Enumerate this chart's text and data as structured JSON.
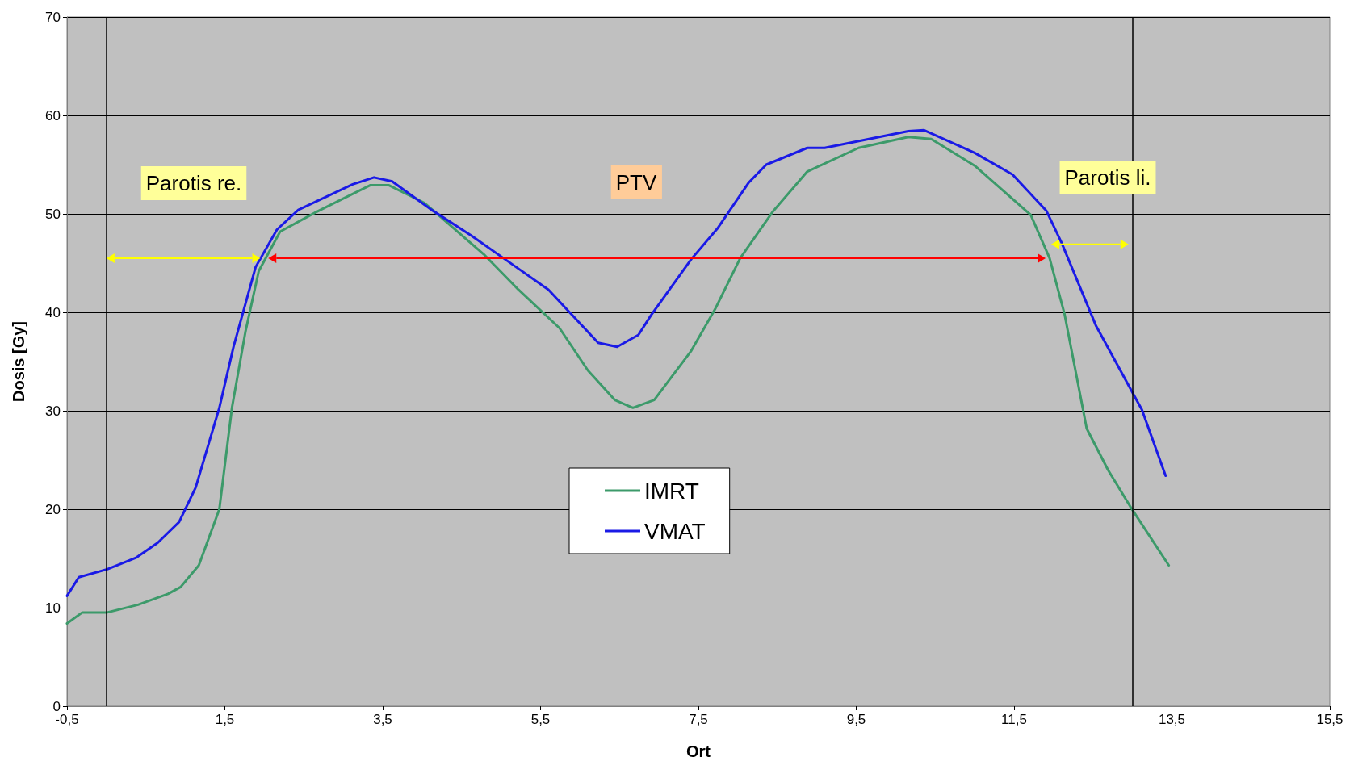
{
  "chart_data": {
    "type": "line",
    "xlabel": "Ort",
    "ylabel": "Dosis [Gy]",
    "series": [
      {
        "name": "IMRT",
        "color": "#3c9a6a",
        "x": [
          -0.5,
          -0.31,
          0,
          0.4,
          0.78,
          0.94,
          1.17,
          1.43,
          1.59,
          1.76,
          1.93,
          2.2,
          2.66,
          3.34,
          3.58,
          4.03,
          4.78,
          5.22,
          5.74,
          6.1,
          6.44,
          6.67,
          6.94,
          7.41,
          7.71,
          8.03,
          8.44,
          8.88,
          9.53,
          10.16,
          10.45,
          11.0,
          11.71,
          11.95,
          12.14,
          12.42,
          12.69,
          12.97,
          13.46
        ],
        "values": [
          8.4,
          9.5,
          9.5,
          10.3,
          11.4,
          12.1,
          14.3,
          20.0,
          30.3,
          38.0,
          44.2,
          48.2,
          50.2,
          52.9,
          52.9,
          51.1,
          45.9,
          42.3,
          38.4,
          34.1,
          31.1,
          30.3,
          31.1,
          36.1,
          40.3,
          45.5,
          50.2,
          54.3,
          56.7,
          57.8,
          57.6,
          54.9,
          49.9,
          45.5,
          39.8,
          28.2,
          24.0,
          20.3,
          14.3
        ]
      },
      {
        "name": "VMAT",
        "color": "#1a1ae6",
        "x": [
          -0.5,
          -0.35,
          0.01,
          0.38,
          0.65,
          0.92,
          1.13,
          1.43,
          1.61,
          1.89,
          2.16,
          2.43,
          3.12,
          3.39,
          3.62,
          4.12,
          4.62,
          5.19,
          5.6,
          6.23,
          6.47,
          6.74,
          6.9,
          7.41,
          7.74,
          8.14,
          8.36,
          8.88,
          9.1,
          10.16,
          10.36,
          11.0,
          11.48,
          11.91,
          12.1,
          12.54,
          12.97,
          13.12,
          13.42
        ],
        "values": [
          11.2,
          13.1,
          13.9,
          15.1,
          16.6,
          18.7,
          22.2,
          30.3,
          36.5,
          44.6,
          48.4,
          50.4,
          53.0,
          53.7,
          53.3,
          50.4,
          47.8,
          44.6,
          42.3,
          36.9,
          36.5,
          37.7,
          39.7,
          45.4,
          48.5,
          53.2,
          55.0,
          56.7,
          56.7,
          58.4,
          58.5,
          56.2,
          54.0,
          50.3,
          47.1,
          38.6,
          32.3,
          30.1,
          23.4
        ]
      }
    ],
    "xlim": [
      -0.5,
      15.5
    ],
    "xticks": [
      {
        "value": -0.5,
        "label": "-0,5"
      },
      {
        "value": 1.5,
        "label": "1,5"
      },
      {
        "value": 3.5,
        "label": "3,5"
      },
      {
        "value": 5.5,
        "label": "5,5"
      },
      {
        "value": 7.5,
        "label": "7,5"
      },
      {
        "value": 9.5,
        "label": "9,5"
      },
      {
        "value": 11.5,
        "label": "11,5"
      },
      {
        "value": 13.5,
        "label": "13,5"
      },
      {
        "value": 15.5,
        "label": "15,5"
      }
    ],
    "ylim": [
      0,
      70
    ],
    "yticks": [
      0,
      10,
      20,
      30,
      40,
      50,
      60,
      70
    ],
    "grid": "y",
    "legend": "bottom",
    "marker": "none",
    "line_style": "solid",
    "ref_lines": [
      {
        "axis": "x",
        "value": 0,
        "color": "#000000"
      },
      {
        "axis": "x",
        "value": 13,
        "color": "#000000"
      }
    ],
    "annotations": [
      "Parotis re.",
      "PTV",
      "Parotis li."
    ]
  }
}
